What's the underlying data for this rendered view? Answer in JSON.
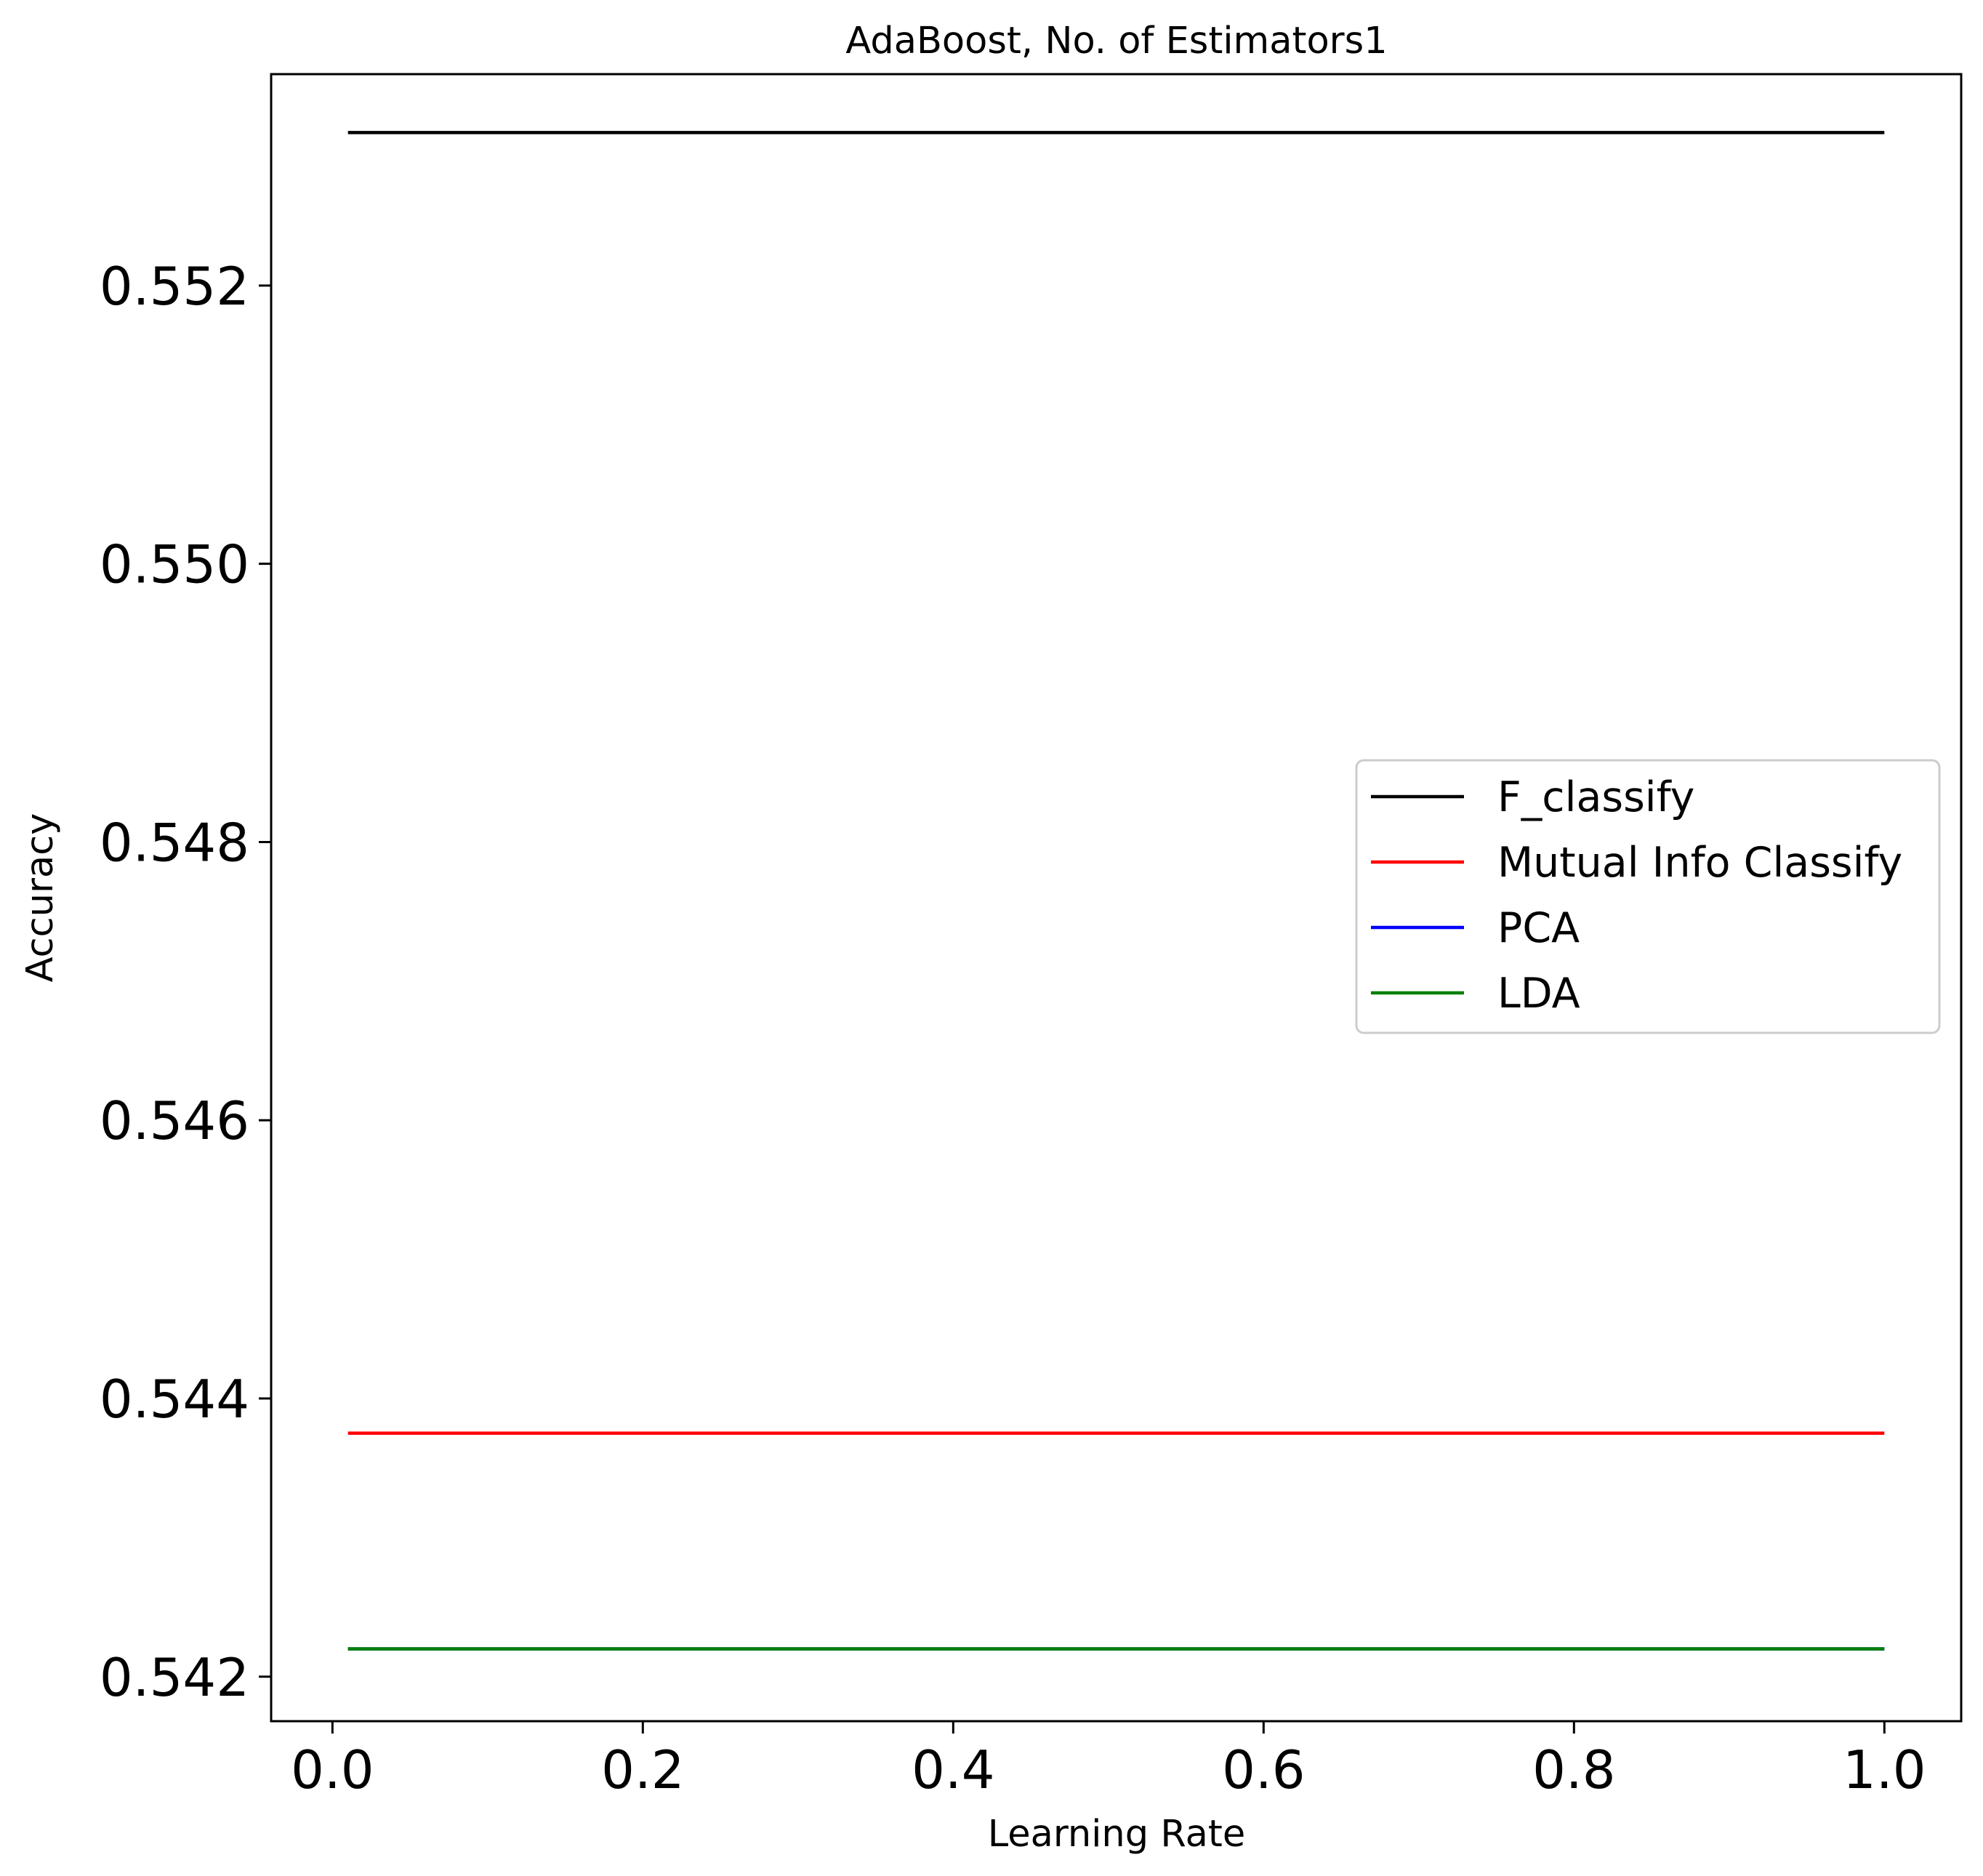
{
  "chart_data": {
    "type": "line",
    "title": "AdaBoost, No. of Estimators1",
    "xlabel": "Learning Rate",
    "ylabel": "Accuracy",
    "xlim": [
      -0.0395,
      1.0495
    ],
    "ylim": [
      0.54168,
      0.55352
    ],
    "xticks": [
      0.0,
      0.2,
      0.4,
      0.6,
      0.8,
      1.0
    ],
    "xtick_labels": [
      "0.0",
      "0.2",
      "0.4",
      "0.6",
      "0.8",
      "1.0"
    ],
    "yticks": [
      0.542,
      0.544,
      0.546,
      0.548,
      0.55,
      0.552
    ],
    "ytick_labels": [
      "0.542",
      "0.544",
      "0.546",
      "0.548",
      "0.550",
      "0.552"
    ],
    "x": [
      0.01,
      1.0
    ],
    "series": [
      {
        "name": "F_classify",
        "color": "#000000",
        "values": [
          0.5531,
          0.5531
        ]
      },
      {
        "name": "Mutual Info Classify",
        "color": "#ff0000",
        "values": [
          0.54375,
          0.54375
        ]
      },
      {
        "name": "PCA",
        "color": "#0000ff",
        "values": [
          0.5422,
          0.5422
        ]
      },
      {
        "name": "LDA",
        "color": "#008000",
        "values": [
          0.5422,
          0.5422
        ]
      }
    ],
    "legend_position": "center-right",
    "grid": false
  }
}
